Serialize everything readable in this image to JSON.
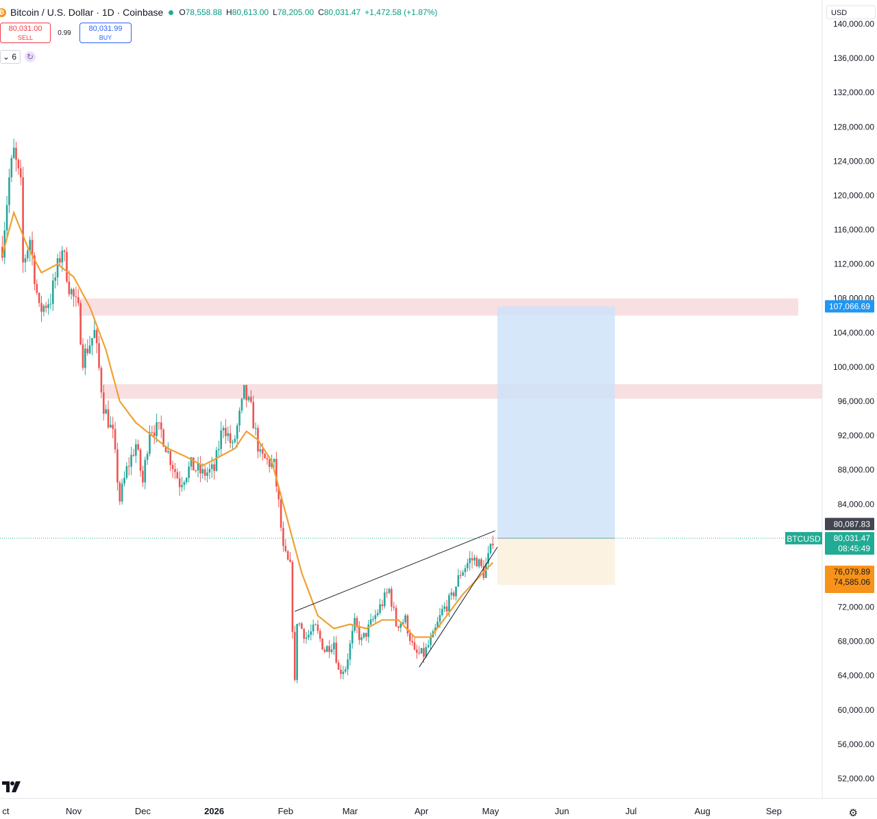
{
  "header": {
    "coin_icon": "bitcoin-icon",
    "title": "Bitcoin / U.S. Dollar · 1D · Coinbase",
    "open_label": "O",
    "open": "78,558.88",
    "high_label": "H",
    "high": "80,613.00",
    "low_label": "L",
    "low": "78,205.00",
    "close_label": "C",
    "close": "80,031.47",
    "change": "+1,472.58 (+1.87%)"
  },
  "trade": {
    "sell_price": "80,031.00",
    "sell_label": "SELL",
    "spread": "0.99",
    "buy_price": "80,031.99",
    "buy_label": "BUY"
  },
  "indicators": {
    "collapse_count": "6",
    "collapse_icon": "chevron-down-icon",
    "refresh_icon": "refresh-icon"
  },
  "currency": "USD",
  "brand": "TV",
  "settings_icon": "gear-icon",
  "colors": {
    "up": "#26a69a",
    "down": "#ef5350",
    "ma": "#f0a030",
    "zone": "#f7d9dc",
    "target": "#cfe3f9",
    "stop": "#fcf1df",
    "price_tag": "#22ab94",
    "target_tag": "#2196f3",
    "stop_tag": "#f7931a"
  },
  "chart_data": {
    "type": "candlestick",
    "symbol_label": "BTCUSD",
    "timeframe": "1D",
    "y_ticks": [
      "52,000.00",
      "56,000.00",
      "60,000.00",
      "64,000.00",
      "68,000.00",
      "72,000.00",
      "76,000.00",
      "84,000.00",
      "88,000.00",
      "92,000.00",
      "96,000.00",
      "100,000.00",
      "104,000.00",
      "108,000.00",
      "112,000.00",
      "116,000.00",
      "120,000.00",
      "124,000.00",
      "128,000.00",
      "132,000.00",
      "136,000.00",
      "140,000.00"
    ],
    "y_tick_values": [
      52000,
      56000,
      60000,
      64000,
      68000,
      72000,
      76000,
      84000,
      88000,
      92000,
      96000,
      100000,
      104000,
      108000,
      112000,
      116000,
      120000,
      124000,
      128000,
      132000,
      136000,
      140000
    ],
    "x_labels": [
      "ct",
      "Nov",
      "Dec",
      "2026",
      "Feb",
      "Mar",
      "Apr",
      "May",
      "Jun",
      "Jul",
      "Aug",
      "Sep"
    ],
    "x_label_dates": [
      "2025-10-01",
      "2025-11-01",
      "2025-12-01",
      "2026-01-01",
      "2026-02-01",
      "2026-03-01",
      "2026-04-01",
      "2026-05-01",
      "2026-06-01",
      "2026-07-01",
      "2026-08-01",
      "2026-09-01"
    ],
    "price_keypoints": [
      [
        "2025-10-01",
        114000
      ],
      [
        "2025-10-04",
        122000
      ],
      [
        "2025-10-06",
        125000
      ],
      [
        "2025-10-09",
        121000
      ],
      [
        "2025-10-10",
        112000
      ],
      [
        "2025-10-13",
        115000
      ],
      [
        "2025-10-17",
        106500
      ],
      [
        "2025-10-22",
        108000
      ],
      [
        "2025-10-27",
        114000
      ],
      [
        "2025-10-30",
        109500
      ],
      [
        "2025-11-03",
        106500
      ],
      [
        "2025-11-05",
        101000
      ],
      [
        "2025-11-10",
        104000
      ],
      [
        "2025-11-14",
        95500
      ],
      [
        "2025-11-18",
        92000
      ],
      [
        "2025-11-21",
        84500
      ],
      [
        "2025-11-24",
        88000
      ],
      [
        "2025-11-28",
        91000
      ],
      [
        "2025-12-01",
        86500
      ],
      [
        "2025-12-04",
        93000
      ],
      [
        "2025-12-09",
        92500
      ],
      [
        "2025-12-12",
        90000
      ],
      [
        "2025-12-17",
        86500
      ],
      [
        "2025-12-22",
        88500
      ],
      [
        "2025-12-27",
        87500
      ],
      [
        "2026-01-01",
        88000
      ],
      [
        "2026-01-05",
        93500
      ],
      [
        "2026-01-09",
        90500
      ],
      [
        "2026-01-13",
        95500
      ],
      [
        "2026-01-14",
        97000
      ],
      [
        "2026-01-17",
        95000
      ],
      [
        "2026-01-21",
        89500
      ],
      [
        "2026-01-24",
        89000
      ],
      [
        "2026-01-27",
        88500
      ],
      [
        "2026-01-29",
        84000
      ],
      [
        "2026-01-31",
        78500
      ],
      [
        "2026-02-03",
        76500
      ],
      [
        "2026-02-05",
        63000
      ],
      [
        "2026-02-06",
        70500
      ],
      [
        "2026-02-10",
        68500
      ],
      [
        "2026-02-14",
        69500
      ],
      [
        "2026-02-18",
        67000
      ],
      [
        "2026-02-22",
        68000
      ],
      [
        "2026-02-24",
        64500
      ],
      [
        "2026-02-27",
        65000
      ],
      [
        "2026-03-03",
        70000
      ],
      [
        "2026-03-06",
        68000
      ],
      [
        "2026-03-11",
        70500
      ],
      [
        "2026-03-15",
        72500
      ],
      [
        "2026-03-18",
        74000
      ],
      [
        "2026-03-21",
        70000
      ],
      [
        "2026-03-25",
        70500
      ],
      [
        "2026-03-29",
        66500
      ],
      [
        "2026-04-02",
        66500
      ],
      [
        "2026-04-06",
        68500
      ],
      [
        "2026-04-10",
        71500
      ],
      [
        "2026-04-14",
        73000
      ],
      [
        "2026-04-18",
        76000
      ],
      [
        "2026-04-22",
        77500
      ],
      [
        "2026-04-25",
        77500
      ],
      [
        "2026-04-28",
        76000
      ],
      [
        "2026-05-01",
        78600
      ],
      [
        "2026-05-02",
        80031
      ]
    ],
    "ma_label": "Moving average",
    "ma_keypoints": [
      [
        "2025-10-01",
        113000
      ],
      [
        "2025-10-06",
        118000
      ],
      [
        "2025-10-12",
        114000
      ],
      [
        "2025-10-18",
        111000
      ],
      [
        "2025-10-25",
        112000
      ],
      [
        "2025-11-01",
        110500
      ],
      [
        "2025-11-08",
        107000
      ],
      [
        "2025-11-15",
        102000
      ],
      [
        "2025-11-21",
        96000
      ],
      [
        "2025-11-28",
        93500
      ],
      [
        "2025-12-05",
        92000
      ],
      [
        "2025-12-12",
        90500
      ],
      [
        "2025-12-20",
        89500
      ],
      [
        "2025-12-27",
        88500
      ],
      [
        "2026-01-03",
        89500
      ],
      [
        "2026-01-10",
        90500
      ],
      [
        "2026-01-15",
        92500
      ],
      [
        "2026-01-20",
        91500
      ],
      [
        "2026-01-26",
        89000
      ],
      [
        "2026-02-01",
        83000
      ],
      [
        "2026-02-08",
        76000
      ],
      [
        "2026-02-15",
        71000
      ],
      [
        "2026-02-22",
        69500
      ],
      [
        "2026-03-01",
        70000
      ],
      [
        "2026-03-08",
        69500
      ],
      [
        "2026-03-15",
        70500
      ],
      [
        "2026-03-22",
        70500
      ],
      [
        "2026-03-29",
        68500
      ],
      [
        "2026-04-05",
        68500
      ],
      [
        "2026-04-12",
        71000
      ],
      [
        "2026-04-19",
        73500
      ],
      [
        "2026-04-26",
        75500
      ],
      [
        "2026-05-02",
        77200
      ]
    ],
    "trendlines": [
      {
        "from": [
          "2026-02-05",
          71500
        ],
        "to": [
          "2026-05-03",
          80900
        ]
      },
      {
        "from": [
          "2026-03-31",
          65000
        ],
        "to": [
          "2026-05-04",
          79000
        ]
      }
    ],
    "zones": [
      {
        "low": 106000,
        "high": 108000
      },
      {
        "low": 96300,
        "high": 98000
      }
    ],
    "position": {
      "type": "long",
      "start": "2026-05-01",
      "end": "2026-06-24",
      "entry": 80031.47,
      "target": 107066.69,
      "stop": 74585.06,
      "target_label": "107,066.69",
      "stop_label": "74,585.06"
    },
    "price_tags": {
      "high_tag": "80,087.83",
      "last_price": "80,031.47",
      "countdown": "08:45:49",
      "ma_tag": "76,079.89"
    },
    "y_range": [
      50000,
      142000
    ]
  }
}
